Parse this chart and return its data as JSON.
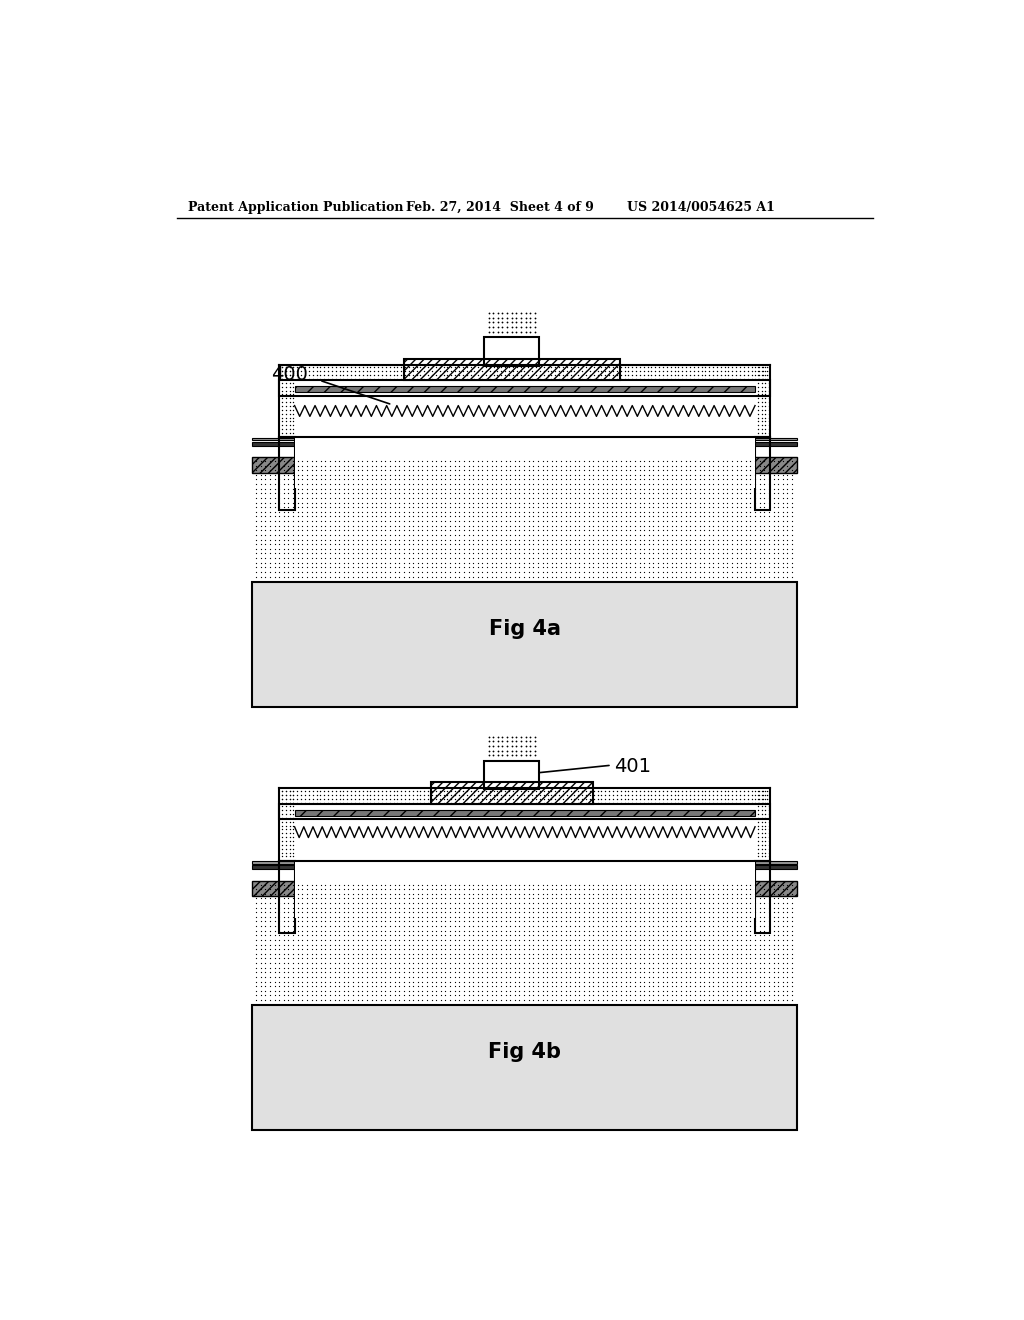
{
  "bg_color": "#ffffff",
  "header_left": "Patent Application Publication",
  "header_mid": "Feb. 27, 2014  Sheet 4 of 9",
  "header_right": "US 2014/0054625 A1",
  "fig4a_label": "Fig 4a",
  "fig4b_label": "Fig 4b",
  "label_400": "400",
  "label_401": "401"
}
